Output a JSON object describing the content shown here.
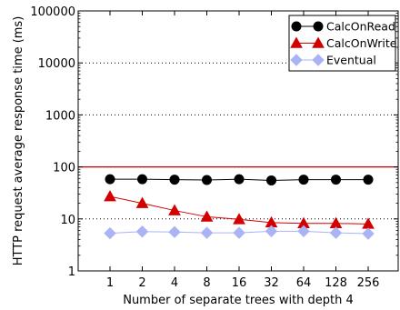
{
  "chart_data": {
    "type": "line",
    "title": "",
    "xlabel": "Number of separate trees with depth 4",
    "ylabel": "HTTP request average response time (ms)",
    "y_scale": "log",
    "ylim": [
      1,
      100000
    ],
    "y_ticks": [
      1,
      10,
      100,
      1000,
      10000,
      100000
    ],
    "y_tick_labels": [
      "1",
      "10",
      "100",
      "1000",
      "10000",
      "100000"
    ],
    "categories": [
      "1",
      "2",
      "4",
      "8",
      "16",
      "32",
      "64",
      "128",
      "256"
    ],
    "grid": "horizontal dotted",
    "reference_line": {
      "value": 100,
      "color": "#cc0000"
    },
    "legend": {
      "placement": "top-right"
    },
    "series": [
      {
        "name": "CalcOnRead",
        "color": "#000000",
        "marker": "circle",
        "values": [
          58,
          58,
          57,
          56,
          58,
          55,
          57,
          57,
          57
        ]
      },
      {
        "name": "CalcOnWrite",
        "color": "#d40000",
        "marker": "triangle",
        "values": [
          27,
          20,
          14.5,
          11,
          9.8,
          8.5,
          8.2,
          8.2,
          8.0
        ]
      },
      {
        "name": "Eventual",
        "color": "#aab4f5",
        "marker": "diamond",
        "values": [
          5.3,
          5.7,
          5.6,
          5.4,
          5.4,
          5.8,
          5.8,
          5.4,
          5.2
        ]
      }
    ]
  }
}
